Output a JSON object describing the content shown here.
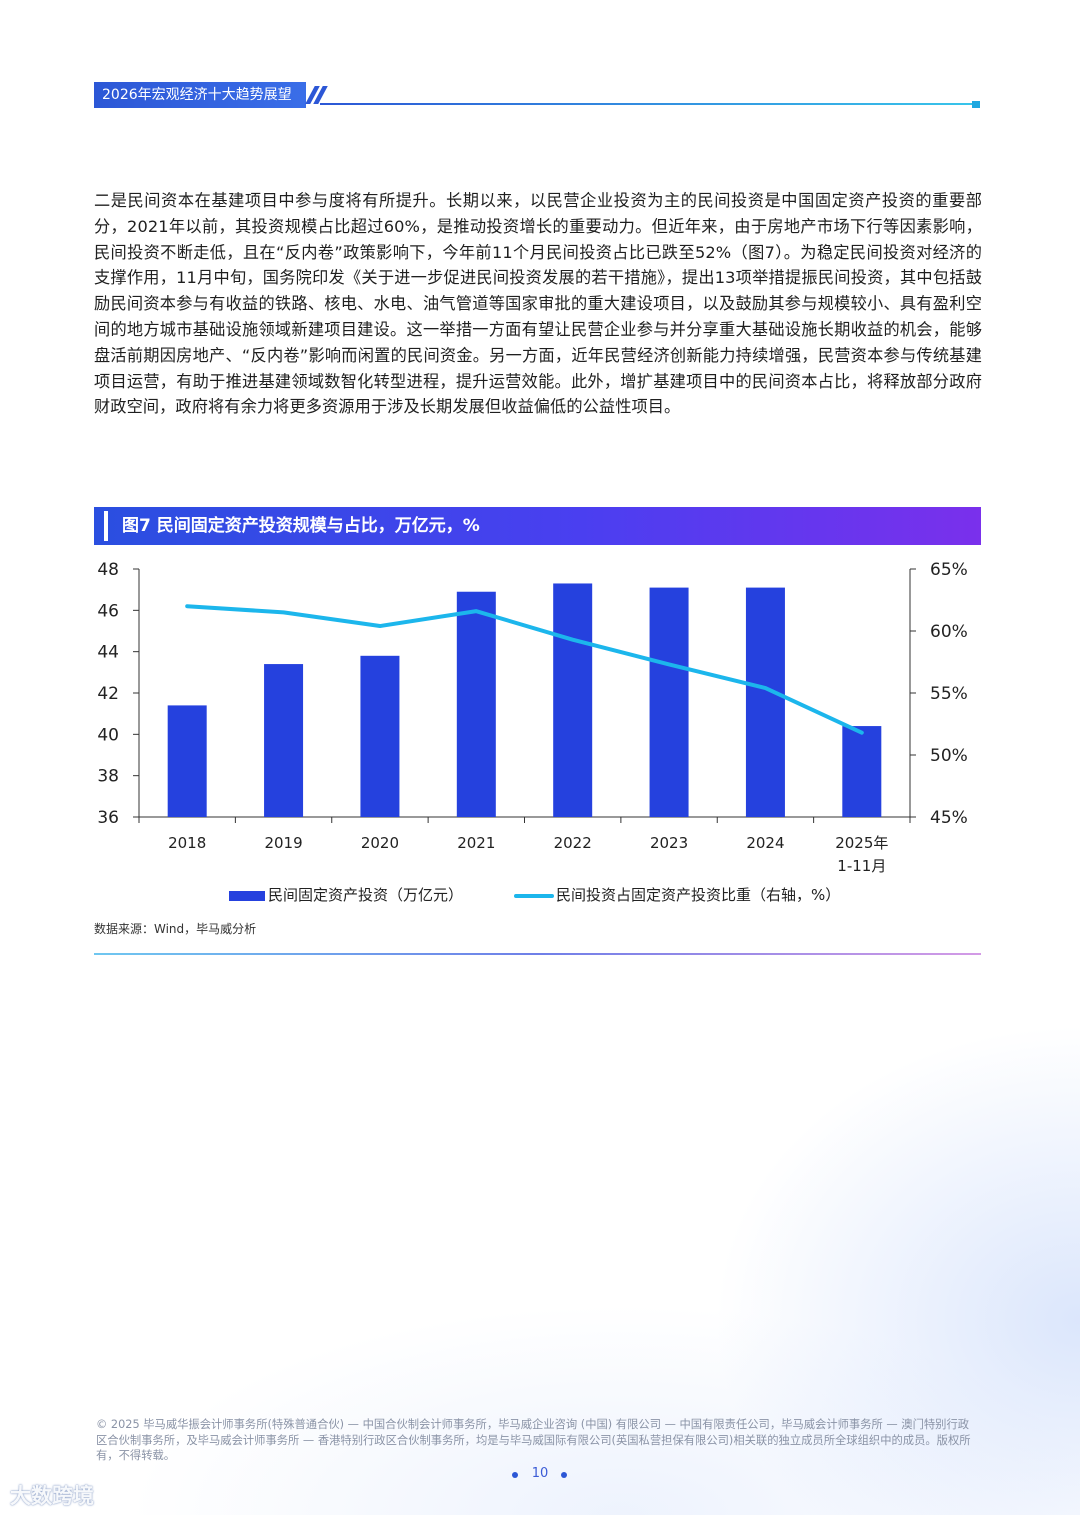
{
  "header": {
    "title": "2026年宏观经济十大趋势展望"
  },
  "body": {
    "paragraph": "二是民间资本在基建项目中参与度将有所提升。长期以来，以民营企业投资为主的民间投资是中国固定资产投资的重要部分，2021年以前，其投资规模占比超过60%，是推动投资增长的重要动力。但近年来，由于房地产市场下行等因素影响，民间投资不断走低，且在“反内卷”政策影响下，今年前11个月民间投资占比已跌至52%（图7）。为稳定民间投资对经济的支撑作用，11月中旬，国务院印发《关于进一步促进民间投资发展的若干措施》，提出13项举措提振民间投资，其中包括鼓励民间资本参与有收益的铁路、核电、水电、油气管道等国家审批的重大建设项目，以及鼓励其参与规模较小、具有盈利空间的地方城市基础设施领域新建项目建设。这一举措一方面有望让民营企业参与并分享重大基础设施长期收益的机会，能够盘活前期因房地产、“反内卷”影响而闲置的民间资金。另一方面，近年民营经济创新能力持续增强，民营资本参与传统基建项目运营，有助于推进基建领域数智化转型进程，提升运营效能。此外，增扩基建项目中的民间资本占比，将释放部分政府财政空间，政府将有余力将更多资源用于涉及长期发展但收益偏低的公益性项目。"
  },
  "figure": {
    "title": "图7 民间固定资产投资规模与占比，万亿元，%",
    "source": "数据来源：Wind，毕马威分析"
  },
  "chart_data": {
    "type": "bar",
    "title": "图7 民间固定资产投资规模与占比，万亿元，%",
    "categories": [
      [
        "2018"
      ],
      [
        "2019"
      ],
      [
        "2020"
      ],
      [
        "2021"
      ],
      [
        "2022"
      ],
      [
        "2023"
      ],
      [
        "2024"
      ],
      [
        "2025年",
        "1-11月"
      ]
    ],
    "series": [
      {
        "name": "民间固定资产投资（万亿元）",
        "type": "bar",
        "axis": "left",
        "color": "#2541de",
        "values": [
          41.4,
          43.4,
          43.8,
          46.9,
          47.3,
          47.1,
          47.1,
          40.4
        ]
      },
      {
        "name": "民间投资占固定资产投资比重（右轴，%）",
        "type": "line",
        "axis": "right",
        "color": "#1cb6ec",
        "values": [
          62.0,
          61.5,
          60.4,
          61.6,
          59.3,
          57.3,
          55.4,
          51.8
        ]
      }
    ],
    "y_left": {
      "min": 36,
      "max": 48,
      "ticks": [
        "36",
        "38",
        "40",
        "42",
        "44",
        "46",
        "48"
      ]
    },
    "y_right": {
      "min": 45,
      "max": 65,
      "ticks": [
        "45%",
        "50%",
        "55%",
        "60%",
        "65%"
      ]
    },
    "grid": false,
    "legend_position": "bottom"
  },
  "footer": {
    "copyright": "© 2025 毕马威华振会计师事务所(特殊普通合伙) — 中国合伙制会计师事务所，毕马威企业咨询 (中国) 有限公司 — 中国有限责任公司，毕马威会计师事务所 — 澳门特别行政区合伙制事务所，及毕马威会计师事务所 — 香港特别行政区合伙制事务所，均是与毕马威国际有限公司(英国私营担保有限公司)相关联的独立成员所全球组织中的成员。版权所有，不得转载。",
    "page_number": "10",
    "watermark": "大数跨境"
  },
  "colors": {
    "brand_blue": "#2c57d6",
    "bar_blue": "#2541de",
    "line_cyan": "#1cb6ec",
    "title_purple": "#7a30ec"
  }
}
